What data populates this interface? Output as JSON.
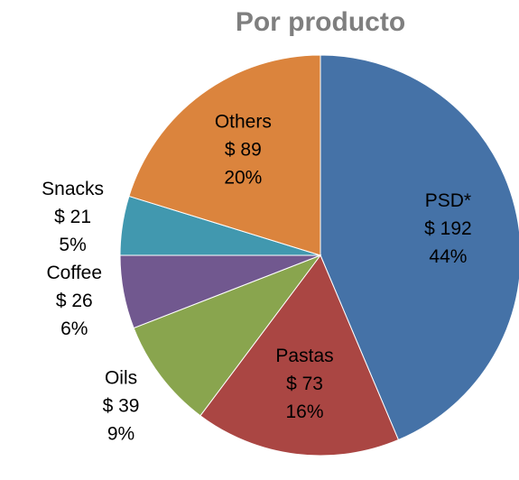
{
  "chart_data": {
    "type": "pie",
    "title": "Por producto",
    "categories": [
      "PSD*",
      "Pastas",
      "Oils",
      "Coffee",
      "Snacks",
      "Others"
    ],
    "values": [
      192,
      73,
      39,
      26,
      21,
      89
    ],
    "value_labels": [
      "$ 192",
      "$ 73",
      "$ 39",
      "$ 26",
      "$ 21",
      "$ 89"
    ],
    "percents": [
      44,
      16,
      9,
      6,
      5,
      20
    ],
    "percent_labels": [
      "44%",
      "16%",
      "9%",
      "6%",
      "5%",
      "20%"
    ],
    "colors": [
      "#4572A7",
      "#AA4643",
      "#89A54E",
      "#71588F",
      "#4198AF",
      "#DB843D"
    ]
  }
}
